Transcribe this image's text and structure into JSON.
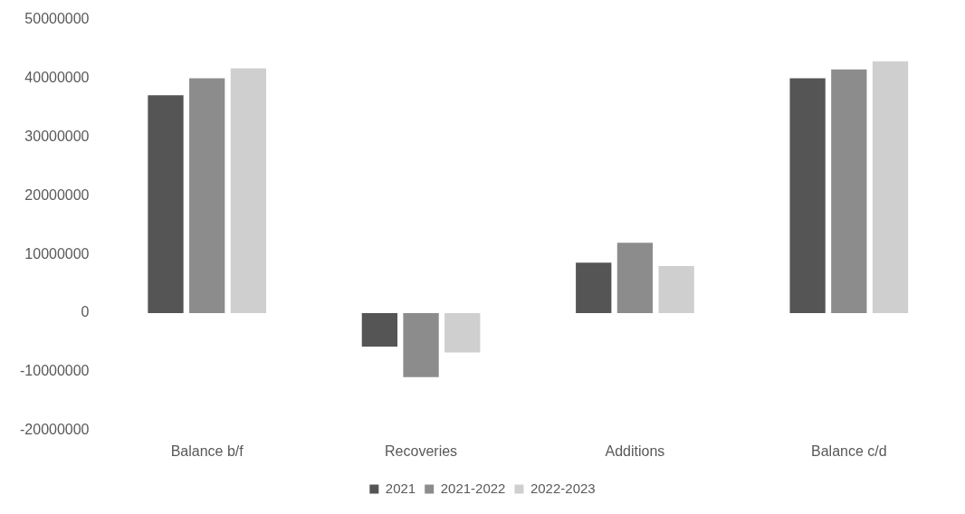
{
  "chart_data": {
    "type": "bar",
    "categories": [
      "Balance b/f",
      "Recoveries",
      "Additions",
      "Balance c/d"
    ],
    "series": [
      {
        "name": "2021",
        "color": "#555555",
        "values": [
          37100000,
          -5700000,
          8600000,
          40000000
        ]
      },
      {
        "name": "2021-2022",
        "color": "#8c8c8c",
        "values": [
          40000000,
          -10900000,
          12000000,
          41500000
        ]
      },
      {
        "name": "2022-2023",
        "color": "#cfcfcf",
        "values": [
          41700000,
          -6700000,
          8000000,
          42900000
        ]
      }
    ],
    "ylim": [
      -20000000,
      50000000
    ],
    "yticks": [
      -20000000,
      -10000000,
      0,
      10000000,
      20000000,
      30000000,
      40000000,
      50000000
    ],
    "grid": false,
    "legend": "bottom"
  }
}
